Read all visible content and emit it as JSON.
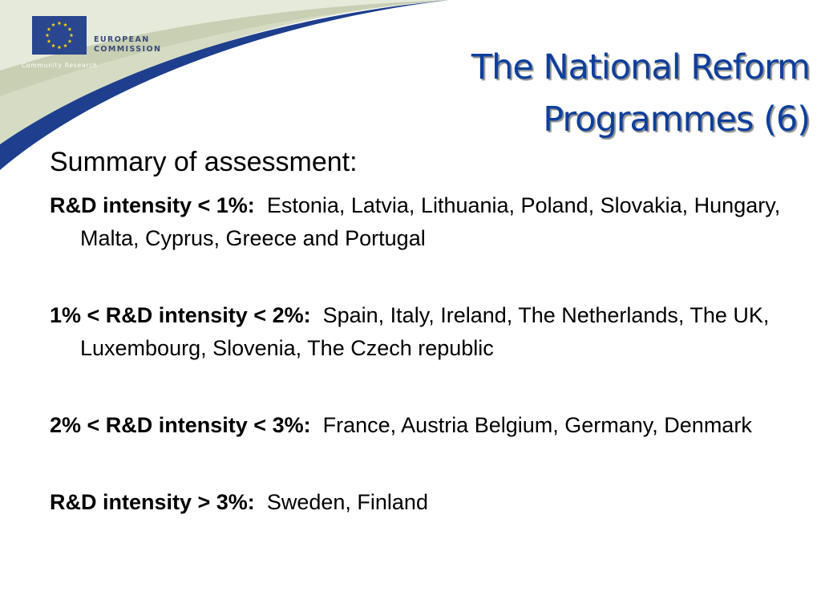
{
  "header": {
    "logo_line1": "EUROPEAN",
    "logo_line2": "COMMISSION",
    "logo_subtitle": "Community Research",
    "brand_blue": "#29468f",
    "band_color": "#d6dcc4",
    "stripe_color": "#1e3f8e",
    "star_color": "#ffd200"
  },
  "title": {
    "line1": "The National Reform",
    "line2": "Programmes (6)",
    "color": "#0d3f9d"
  },
  "content": {
    "subtitle": "Summary of assessment:",
    "items": [
      {
        "label": "R&D intensity < 1%:",
        "text": "Estonia, Latvia, Lithuania, Poland, Slovakia, Hungary, Malta, Cyprus, Greece and Portugal"
      },
      {
        "label": "1% < R&D intensity < 2%:",
        "text": "Spain, Italy, Ireland, The Netherlands, The UK, Luxembourg, Slovenia, The Czech republic"
      },
      {
        "label": "2% < R&D intensity < 3%:",
        "text": "France, Austria Belgium, Germany, Denmark"
      },
      {
        "label": "R&D intensity > 3%:",
        "text": "Sweden, Finland"
      }
    ]
  }
}
